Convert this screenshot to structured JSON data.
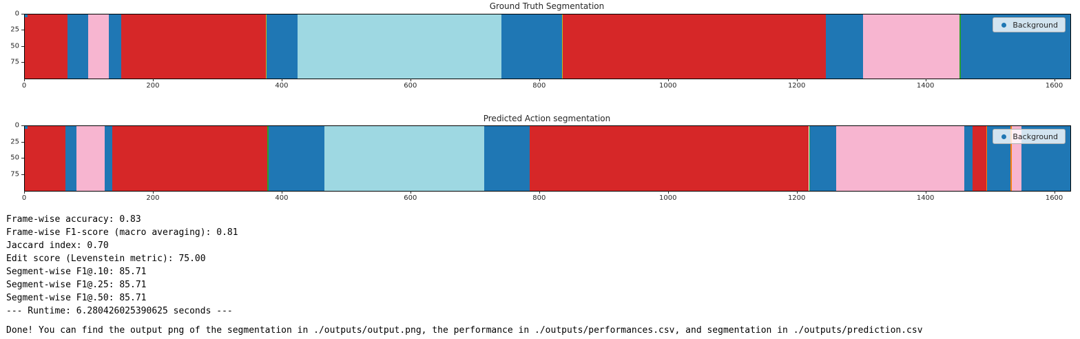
{
  "palette": {
    "background": "#1f77b4",
    "red": "#d62728",
    "pink": "#f7b5d0",
    "cyan": "#9ed8e2",
    "olive": "#bcbd22",
    "green": "#2ca02c",
    "orange": "#ff7f0e"
  },
  "chart_data": [
    {
      "type": "heatmap",
      "title": "Ground Truth Segmentation",
      "legend": {
        "label": "Background",
        "position": "upper right",
        "marker_color": "#1f77b4"
      },
      "xlim": [
        0,
        1624
      ],
      "ylim": [
        0,
        100
      ],
      "x_ticks": [
        0,
        200,
        400,
        600,
        800,
        1000,
        1200,
        1400,
        1600
      ],
      "y_ticks": [
        0,
        25,
        50,
        75
      ],
      "grid": false,
      "segments": [
        {
          "class": "red",
          "start": 0,
          "end": 66
        },
        {
          "class": "background",
          "start": 66,
          "end": 98
        },
        {
          "class": "pink",
          "start": 98,
          "end": 130
        },
        {
          "class": "background",
          "start": 130,
          "end": 150
        },
        {
          "class": "red",
          "start": 150,
          "end": 374
        },
        {
          "class": "olive",
          "start": 374,
          "end": 376
        },
        {
          "class": "background",
          "start": 376,
          "end": 424
        },
        {
          "class": "cyan",
          "start": 424,
          "end": 740
        },
        {
          "class": "background",
          "start": 740,
          "end": 834
        },
        {
          "class": "olive",
          "start": 834,
          "end": 836
        },
        {
          "class": "red",
          "start": 836,
          "end": 1244
        },
        {
          "class": "background",
          "start": 1244,
          "end": 1302
        },
        {
          "class": "pink",
          "start": 1302,
          "end": 1452
        },
        {
          "class": "green",
          "start": 1452,
          "end": 1454
        },
        {
          "class": "background",
          "start": 1454,
          "end": 1624
        }
      ]
    },
    {
      "type": "heatmap",
      "title": "Predicted Action segmentation",
      "legend": {
        "label": "Background",
        "position": "upper right",
        "marker_color": "#1f77b4"
      },
      "xlim": [
        0,
        1624
      ],
      "ylim": [
        0,
        100
      ],
      "x_ticks": [
        0,
        200,
        400,
        600,
        800,
        1000,
        1200,
        1400,
        1600
      ],
      "y_ticks": [
        0,
        25,
        50,
        75
      ],
      "grid": false,
      "segments": [
        {
          "class": "red",
          "start": 0,
          "end": 63
        },
        {
          "class": "background",
          "start": 63,
          "end": 80
        },
        {
          "class": "pink",
          "start": 80,
          "end": 124
        },
        {
          "class": "background",
          "start": 124,
          "end": 136
        },
        {
          "class": "red",
          "start": 136,
          "end": 377
        },
        {
          "class": "green",
          "start": 377,
          "end": 379
        },
        {
          "class": "background",
          "start": 379,
          "end": 465
        },
        {
          "class": "cyan",
          "start": 465,
          "end": 714
        },
        {
          "class": "background",
          "start": 714,
          "end": 784
        },
        {
          "class": "red",
          "start": 784,
          "end": 1218
        },
        {
          "class": "green",
          "start": 1218,
          "end": 1220
        },
        {
          "class": "background",
          "start": 1220,
          "end": 1260
        },
        {
          "class": "pink",
          "start": 1260,
          "end": 1459
        },
        {
          "class": "background",
          "start": 1459,
          "end": 1472
        },
        {
          "class": "red",
          "start": 1472,
          "end": 1493
        },
        {
          "class": "orange",
          "start": 1493,
          "end": 1495
        },
        {
          "class": "background",
          "start": 1495,
          "end": 1531
        },
        {
          "class": "orange",
          "start": 1531,
          "end": 1533
        },
        {
          "class": "pink",
          "start": 1533,
          "end": 1548
        },
        {
          "class": "background",
          "start": 1548,
          "end": 1624
        }
      ]
    }
  ],
  "metrics": {
    "lines": [
      "Frame-wise accuracy: 0.83",
      "Frame-wise F1-score (macro averaging): 0.81",
      "Jaccard index: 0.70",
      "Edit score (Levenstein metric): 75.00",
      "Segment-wise F1@.10: 85.71",
      "Segment-wise F1@.25: 85.71",
      "Segment-wise F1@.50: 85.71",
      "--- Runtime: 6.280426025390625 seconds ---"
    ]
  },
  "console": {
    "done_line": "Done! You can find the output png of the segmentation in ./outputs/output.png, the performance in ./outputs/performances.csv, and segmentation in ./outputs/prediction.csv"
  }
}
